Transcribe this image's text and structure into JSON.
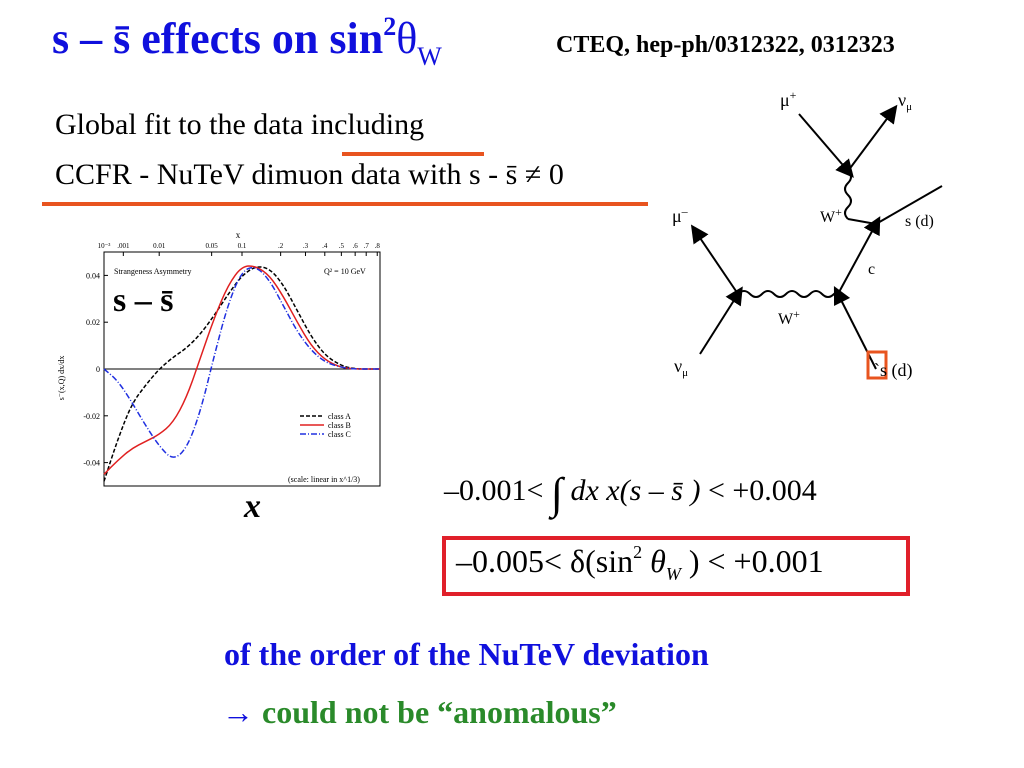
{
  "title": {
    "main": "s – s̄  effects on sin",
    "sup": "2",
    "theta": "θ",
    "sub": "W"
  },
  "reference": "CTEQ, hep-ph/0312322, 0312323",
  "text": {
    "line1": "Global fit to the data including",
    "line2": "CCFR - NuTeV dimuon data with s   - s̄ ≠ 0"
  },
  "plot": {
    "label": "s – s̄",
    "xlabel": "x"
  },
  "feynman": {
    "mu_plus": "μ",
    "mu_plus_sup": "+",
    "nu_mu_top": "ν",
    "nu_mu_top_sub": "μ",
    "W_top": "W",
    "W_top_sup": "+",
    "s_d_top": "s (d)",
    "mu_minus": "μ",
    "mu_minus_sup": "–",
    "c": "c",
    "W_bottom": "W",
    "W_bottom_sup": "+",
    "nu_mu_bottom": "ν",
    "nu_mu_bottom_sub": "μ",
    "s_d_bottom": "`s (d)"
  },
  "equations": {
    "eq1_left": "–0.001<",
    "eq1_integral": "∫",
    "eq1_body": "dx x(s – s̄ )",
    "eq1_right": " < +0.004",
    "eq2_left": "–0.005< δ(sin",
    "eq2_sup": "2",
    "eq2_theta": " θ",
    "eq2_sub": "W",
    "eq2_right": " ) < +0.001"
  },
  "conclusion": {
    "line1": "of the order of  the NuTeV deviation",
    "arrow": "→",
    "line2": " could not be “anomalous”"
  },
  "chart_data": {
    "type": "line",
    "title": "Strangeness Asymmetry",
    "annotation_q2": "Q² = 10 GeV",
    "annotation_scale": "(scale: linear in x^1/3)",
    "top_axis_title": "x",
    "top_ticks": [
      "10⁻³",
      ".001",
      "0.01",
      "0.05",
      "0.1",
      ".2",
      ".3",
      ".4",
      ".5",
      ".6",
      ".7",
      ".8"
    ],
    "ylabel": "s⁻(x,Q) dx/dx",
    "y_ticks": [
      "0.04",
      "0.02",
      "0",
      "-0.02",
      "-0.04"
    ],
    "ylim": [
      -0.05,
      0.05
    ],
    "series": [
      {
        "name": "class A",
        "color": "#000000",
        "dash": "dashed",
        "x": [
          0,
          0.05,
          0.1,
          0.15,
          0.2,
          0.25,
          0.3,
          0.35,
          0.4,
          0.45,
          0.5,
          0.55,
          0.6,
          0.65,
          0.7,
          0.75,
          0.8,
          0.85,
          0.9,
          1.0
        ],
        "y": [
          -0.048,
          -0.03,
          -0.015,
          -0.007,
          0.0,
          0.005,
          0.009,
          0.015,
          0.023,
          0.032,
          0.04,
          0.044,
          0.043,
          0.036,
          0.025,
          0.014,
          0.006,
          0.002,
          0.0,
          0.0
        ]
      },
      {
        "name": "class B",
        "color": "#e02020",
        "dash": "solid",
        "x": [
          0,
          0.05,
          0.1,
          0.15,
          0.2,
          0.25,
          0.3,
          0.35,
          0.4,
          0.45,
          0.5,
          0.55,
          0.6,
          0.65,
          0.7,
          0.75,
          0.8,
          0.85,
          0.9,
          1.0
        ],
        "y": [
          -0.045,
          -0.039,
          -0.034,
          -0.031,
          -0.028,
          -0.023,
          -0.012,
          0.005,
          0.022,
          0.036,
          0.044,
          0.044,
          0.04,
          0.031,
          0.02,
          0.01,
          0.004,
          0.001,
          0.0,
          0.0
        ]
      },
      {
        "name": "class C",
        "color": "#2030e0",
        "dash": "dashdot",
        "x": [
          0,
          0.05,
          0.1,
          0.15,
          0.2,
          0.25,
          0.3,
          0.35,
          0.4,
          0.45,
          0.5,
          0.55,
          0.6,
          0.65,
          0.7,
          0.75,
          0.8,
          0.85,
          0.9,
          1.0
        ],
        "y": [
          0.0,
          -0.005,
          -0.014,
          -0.024,
          -0.033,
          -0.039,
          -0.034,
          -0.018,
          0.006,
          0.028,
          0.042,
          0.044,
          0.038,
          0.027,
          0.016,
          0.008,
          0.003,
          0.001,
          0.0,
          0.0
        ]
      }
    ]
  }
}
